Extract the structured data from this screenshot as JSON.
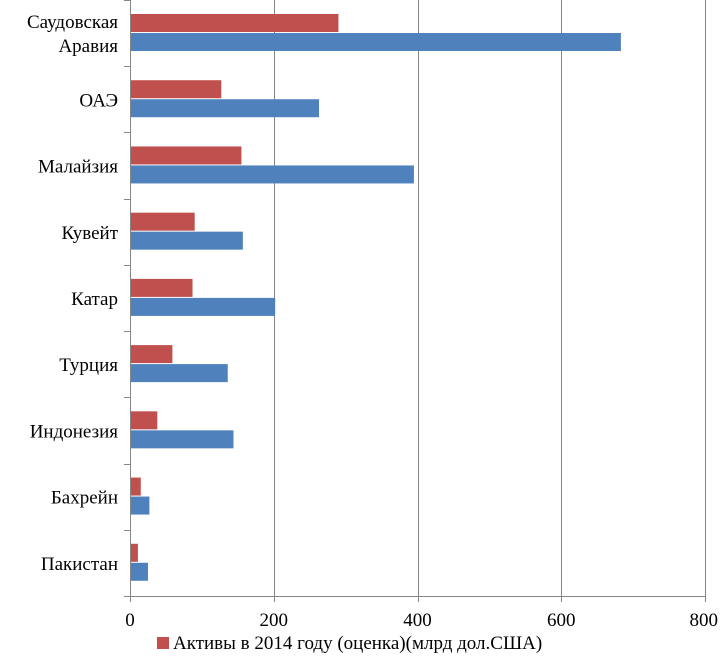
{
  "chart_data": {
    "type": "bar",
    "orientation": "horizontal",
    "categories": [
      [
        "Саудовская",
        "Аравия"
      ],
      [
        "ОАЭ"
      ],
      [
        "Малайзия"
      ],
      [
        "Кувейт"
      ],
      [
        "Катар"
      ],
      [
        "Турция"
      ],
      [
        "Индонезия"
      ],
      [
        "Бахрейн"
      ],
      [
        "Пакистан"
      ]
    ],
    "series": [
      {
        "name": "Активы в 2014 году (оценка)(млрд дол.США)",
        "color": "#c0504d",
        "values": [
          290,
          127,
          155,
          90,
          87,
          59,
          38,
          15,
          11
        ]
      },
      {
        "name": "",
        "color": "#4f81bd",
        "values": [
          683,
          263,
          395,
          157,
          202,
          136,
          144,
          27,
          25
        ]
      }
    ],
    "xlim": [
      0,
      800
    ],
    "xticks": [
      0,
      200,
      400,
      600,
      800
    ],
    "grid": true,
    "legend_position": "bottom"
  }
}
